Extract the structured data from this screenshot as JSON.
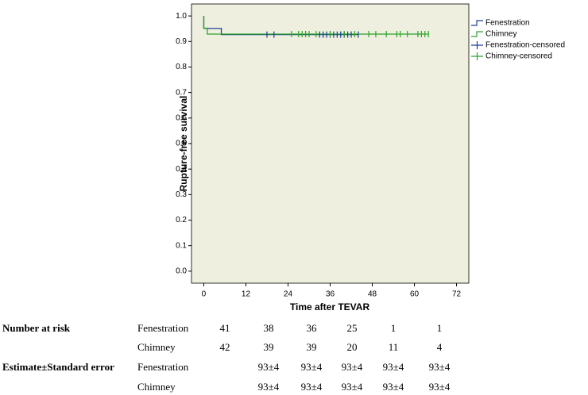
{
  "chart_data": {
    "type": "km",
    "ylabel": "Rupture-free survival",
    "xlabel": "Time after TEVAR",
    "xlim": [
      -3.5,
      75.5
    ],
    "xticks": [
      0,
      12,
      24,
      36,
      48,
      60,
      72
    ],
    "ylim": [
      -0.047,
      1.047
    ],
    "yticks": [
      {
        "value": 0,
        "label": "0.0"
      },
      0.1,
      0.2,
      0.3,
      0.4,
      0.5,
      0.6,
      0.7,
      0.8,
      0.9,
      {
        "value": 1,
        "label": "1.0"
      }
    ],
    "background": "#efefdf",
    "legend": "outside-top-right",
    "series": [
      {
        "name": "Fenestration",
        "color": "#1f3d99",
        "x": [
          0,
          0,
          5,
          5,
          44
        ],
        "values": [
          1,
          0.951,
          0.951,
          0.927,
          0.927
        ]
      },
      {
        "name": "Chimney",
        "color": "#2aa52a",
        "x": [
          0,
          0,
          1,
          1,
          64
        ],
        "values": [
          1,
          0.952,
          0.952,
          0.929,
          0.929
        ]
      },
      {
        "name": "Fenestration-censored",
        "color": "#1f3d99",
        "marker": "+",
        "x": [
          18,
          20,
          33,
          34,
          35,
          36,
          37,
          38,
          39,
          40,
          41,
          42,
          44
        ],
        "values": [
          0.927,
          0.927,
          0.927,
          0.927,
          0.927,
          0.927,
          0.927,
          0.927,
          0.927,
          0.927,
          0.927,
          0.927,
          0.927
        ]
      },
      {
        "name": "Chimney-censored",
        "color": "#2aa52a",
        "marker": "+",
        "x": [
          25,
          27,
          28,
          29,
          30,
          32,
          36,
          40,
          43,
          47,
          49,
          52,
          55,
          56,
          58,
          61,
          62,
          63,
          64
        ],
        "values": [
          0.929,
          0.929,
          0.929,
          0.929,
          0.929,
          0.929,
          0.929,
          0.929,
          0.929,
          0.929,
          0.929,
          0.929,
          0.929,
          0.929,
          0.929,
          0.929,
          0.929,
          0.929,
          0.929
        ]
      }
    ]
  },
  "risk_table": {
    "rows": [
      {
        "label": "Number at risk",
        "group": "Fenestration",
        "cells": [
          41,
          38,
          36,
          25,
          1,
          1
        ]
      },
      {
        "label": null,
        "group": "Chimney",
        "cells": [
          42,
          39,
          39,
          20,
          11,
          4
        ]
      },
      {
        "label": "Estimate±Standard error",
        "group": "Fenestration",
        "cells": [
          null,
          "93±4",
          "93±4",
          "93±4",
          "93±4",
          "93±4"
        ]
      },
      {
        "label": null,
        "group": "Chimney",
        "cells": [
          null,
          "93±4",
          "93±4",
          "93±4",
          "93±4",
          "93±4"
        ]
      }
    ]
  }
}
